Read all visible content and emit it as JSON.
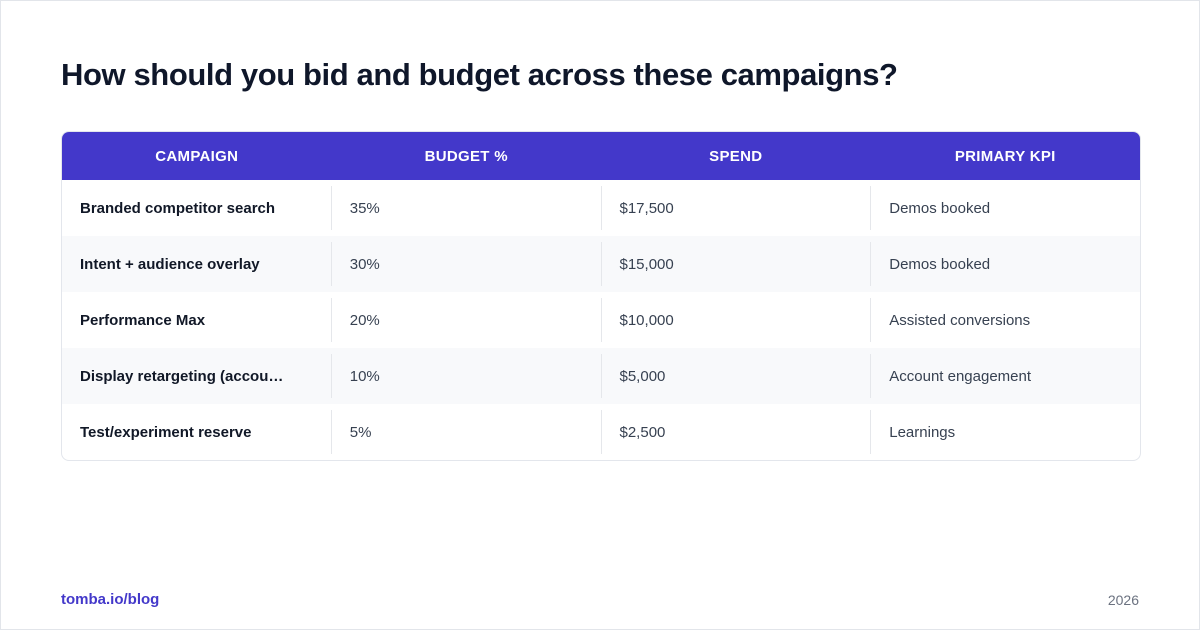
{
  "title": "How should you bid and budget across these campaigns?",
  "table": {
    "headers": [
      "CAMPAIGN",
      "BUDGET %",
      "SPEND",
      "PRIMARY KPI"
    ],
    "rows": [
      {
        "campaign": "Branded competitor search",
        "budget": "35%",
        "spend": "$17,500",
        "kpi": "Demos booked"
      },
      {
        "campaign": "Intent + audience overlay",
        "budget": "30%",
        "spend": "$15,000",
        "kpi": "Demos booked"
      },
      {
        "campaign": "Performance Max",
        "budget": "20%",
        "spend": "$10,000",
        "kpi": "Assisted conversions"
      },
      {
        "campaign": "Display retargeting (accou…",
        "budget": "10%",
        "spend": "$5,000",
        "kpi": "Account engagement"
      },
      {
        "campaign": "Test/experiment reserve",
        "budget": "5%",
        "spend": "$2,500",
        "kpi": "Learnings"
      }
    ]
  },
  "footer": {
    "brand": "tomba.io/blog",
    "year": "2026"
  },
  "colors": {
    "accent": "#4338ca",
    "title": "#0f172a",
    "row_alt": "#f8f9fb"
  }
}
